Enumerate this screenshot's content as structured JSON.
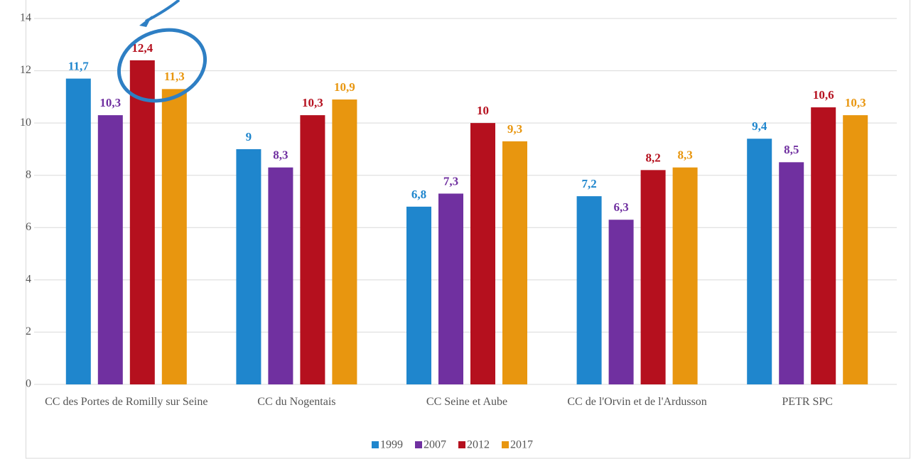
{
  "chart_data": {
    "type": "bar",
    "categories": [
      "CC des Portes de Romilly sur Seine",
      "CC du Nogentais",
      "CC Seine et Aube",
      "CC de l'Orvin et de l'Ardusson",
      "PETR SPC"
    ],
    "series": [
      {
        "name": "1999",
        "color": "#1f86cd",
        "values": [
          11.7,
          9,
          6.8,
          7.2,
          9.4
        ],
        "value_labels": [
          "11,7",
          "9",
          "6,8",
          "7,2",
          "9,4"
        ]
      },
      {
        "name": "2007",
        "color": "#7030a0",
        "values": [
          10.3,
          8.3,
          7.3,
          6.3,
          8.5
        ],
        "value_labels": [
          "10,3",
          "8,3",
          "7,3",
          "6,3",
          "8,5"
        ]
      },
      {
        "name": "2012",
        "color": "#b5101e",
        "values": [
          12.4,
          10.3,
          10,
          8.2,
          10.6
        ],
        "value_labels": [
          "12,4",
          "10,3",
          "10",
          "8,2",
          "10,6"
        ]
      },
      {
        "name": "2017",
        "color": "#e8960f",
        "values": [
          11.3,
          10.9,
          9.3,
          8.3,
          10.3
        ],
        "value_labels": [
          "11,3",
          "10,9",
          "9,3",
          "8,3",
          "10,3"
        ]
      }
    ],
    "ylim": [
      0,
      14
    ],
    "yticks": [
      0,
      2,
      4,
      6,
      8,
      10,
      12,
      14
    ],
    "grid": true,
    "legend": "bottom"
  }
}
